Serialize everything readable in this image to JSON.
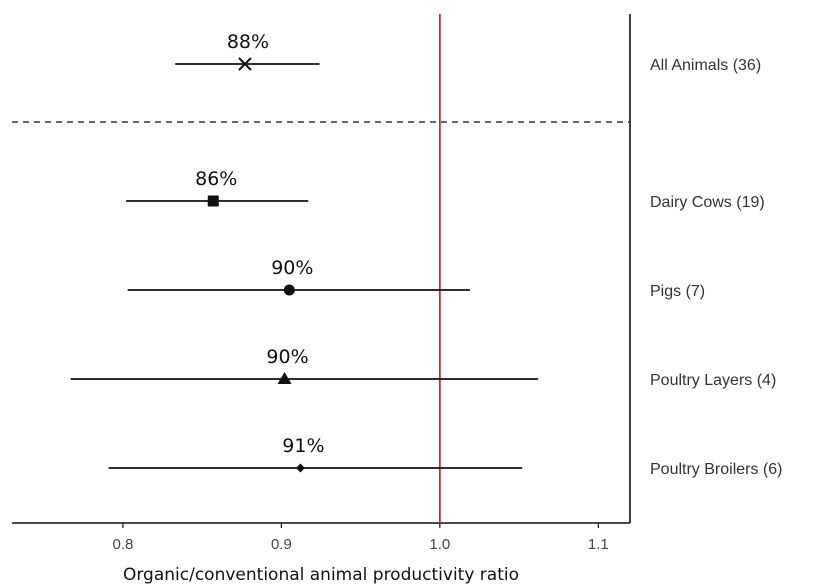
{
  "chart_data": {
    "type": "forest",
    "xlabel": "Organic/conventional animal productivity ratio",
    "xlim": [
      0.73,
      1.12
    ],
    "xticks": [
      "0.8",
      "0.9",
      "1.0",
      "1.1"
    ],
    "reference_line": {
      "x": 1.0,
      "color": "#d62728"
    },
    "separator": {
      "style": "dashed",
      "after_row": 0
    },
    "rows": [
      {
        "label": "All Animals (36)",
        "estimate": 0.877,
        "ci_low": 0.833,
        "ci_high": 0.924,
        "label_pct": "88%",
        "marker": "x"
      },
      {
        "label": "Dairy Cows (19)",
        "estimate": 0.857,
        "ci_low": 0.802,
        "ci_high": 0.917,
        "label_pct": "86%",
        "marker": "square"
      },
      {
        "label": "Pigs (7)",
        "estimate": 0.905,
        "ci_low": 0.803,
        "ci_high": 1.019,
        "label_pct": "90%",
        "marker": "circle"
      },
      {
        "label": "Poultry Layers (4)",
        "estimate": 0.902,
        "ci_low": 0.767,
        "ci_high": 1.062,
        "label_pct": "90%",
        "marker": "triangle"
      },
      {
        "label": "Poultry Broilers (6)",
        "estimate": 0.912,
        "ci_low": 0.791,
        "ci_high": 1.052,
        "label_pct": "91%",
        "marker": "diamond"
      }
    ],
    "colors": {
      "marks": "#111111",
      "reference": "#d62728",
      "axis": "#111111"
    }
  }
}
